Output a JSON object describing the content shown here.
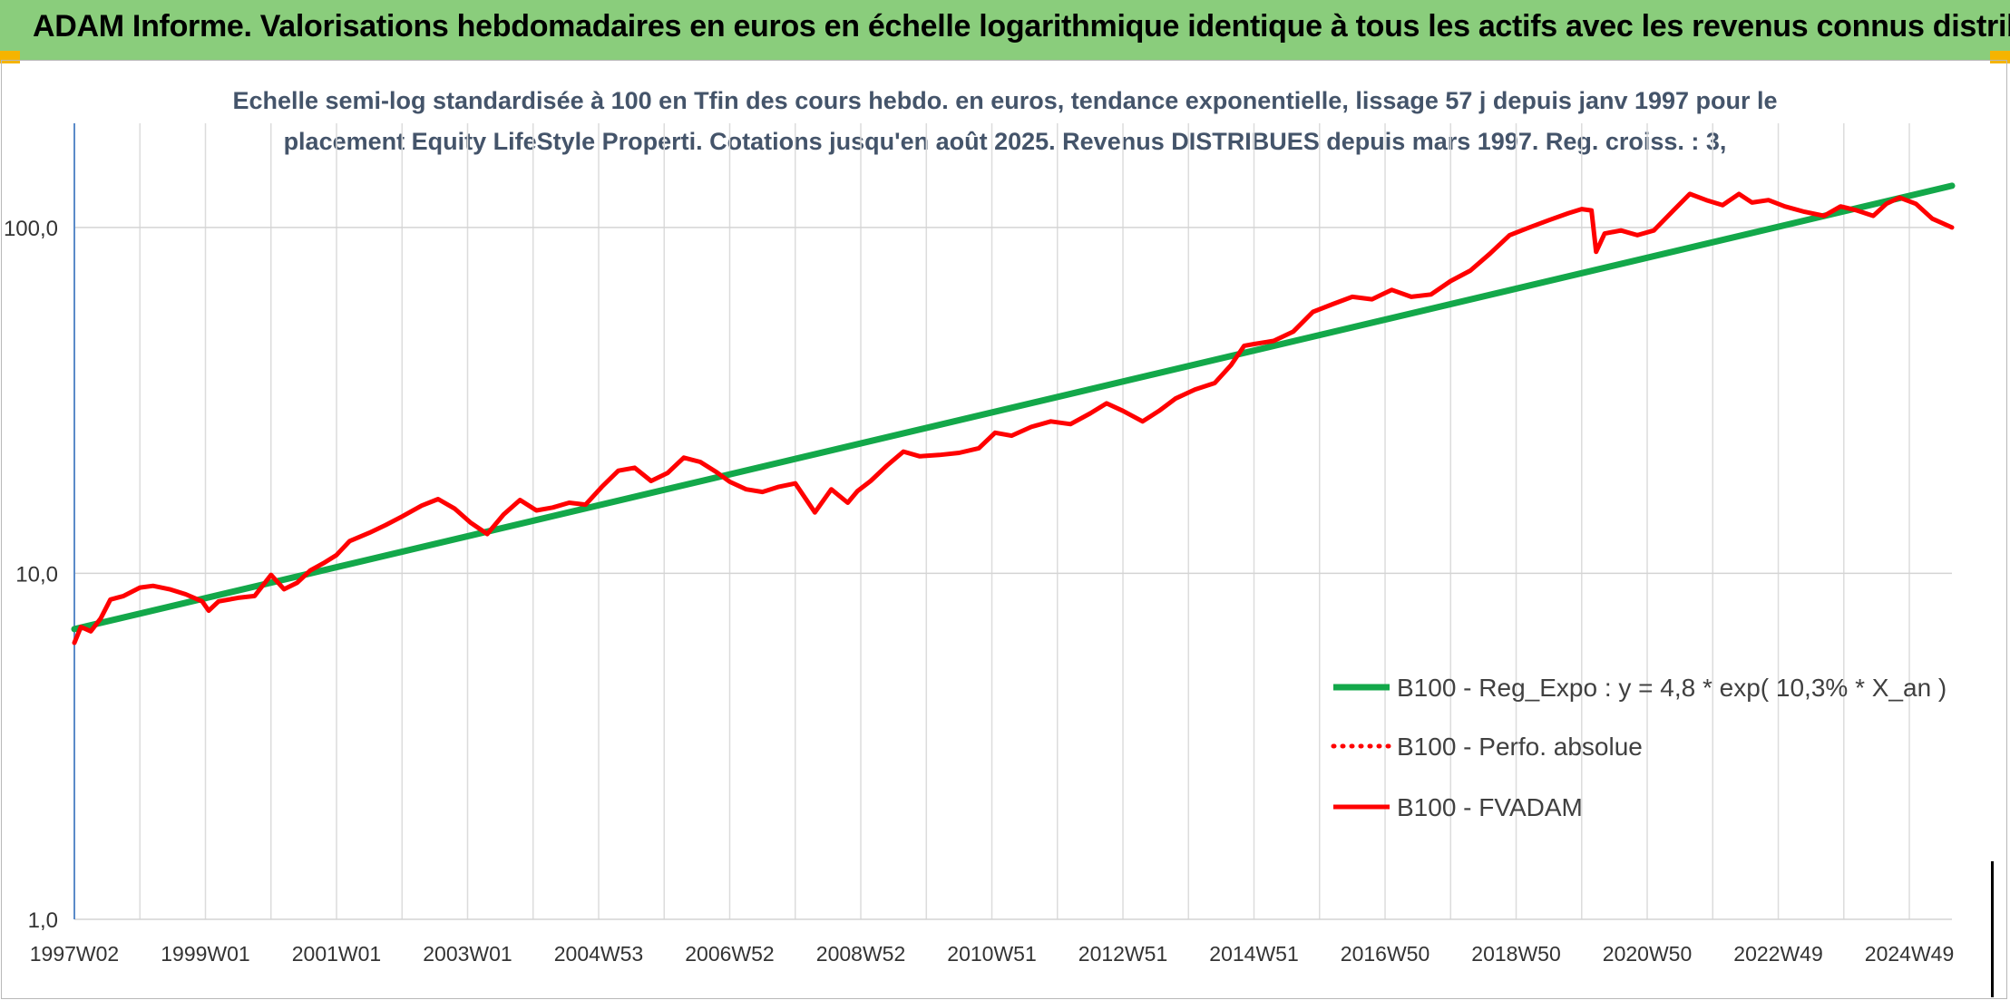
{
  "header": {
    "title": "ADAM Informe. Valorisations hebdomadaires en euros en échelle logarithmique identique à tous les actifs avec les revenus connus distribués"
  },
  "chart_data": {
    "type": "line",
    "title_line1": "Echelle semi-log standardisée à 100 en Tfin des cours hebdo. en euros, tendance exponentielle, lissage 57 j depuis janv 1997 pour le",
    "title_line2": "placement Equity LifeStyle Properti. Cotations jusqu'en août 2025. Revenus DISTRIBUES depuis mars 1997. Reg. croiss. : 3,",
    "y_scale": "log",
    "ylim": [
      1,
      200
    ],
    "y_ticks": [
      1,
      10,
      100
    ],
    "y_tick_labels": [
      "1,0",
      "10,0",
      "100,0"
    ],
    "x_range": [
      1997.0,
      2025.65
    ],
    "x_tick_labels": [
      "1997W02",
      "1999W01",
      "2001W01",
      "2003W01",
      "2004W53",
      "2006W52",
      "2008W52",
      "2010W51",
      "2012W51",
      "2014W51",
      "2016W50",
      "2018W50",
      "2020W50",
      "2022W49",
      "2024W49"
    ],
    "x_tick_years": [
      1997.0,
      1999.0,
      2001.0,
      2003.0,
      2005.0,
      2007.0,
      2009.0,
      2011.0,
      2013.0,
      2015.0,
      2017.0,
      2019.0,
      2021.0,
      2023.0,
      2025.0
    ],
    "grid": true,
    "legend_position": "bottom-right",
    "series": [
      {
        "name": "B100 - Reg_Expo : y = 4,8 * exp( 10,3% *  X_an )",
        "color": "#13a84a",
        "style": "solid",
        "x": [
          1997.0,
          2025.65
        ],
        "y": [
          6.9,
          132
        ]
      },
      {
        "name": "B100 - Perfo. absolue",
        "color": "#ff0000",
        "style": "dotted",
        "x": [],
        "y": []
      },
      {
        "name": "B100 - FVADAM",
        "color": "#ff0000",
        "style": "solid",
        "x": [
          1997.0,
          1997.1,
          1997.25,
          1997.4,
          1997.55,
          1997.75,
          1998.0,
          1998.2,
          1998.45,
          1998.7,
          1998.95,
          1999.05,
          1999.2,
          1999.5,
          1999.75,
          2000.0,
          2000.2,
          2000.4,
          2000.6,
          2000.8,
          2001.0,
          2001.2,
          2001.5,
          2001.75,
          2002.0,
          2002.3,
          2002.55,
          2002.8,
          2003.05,
          2003.3,
          2003.55,
          2003.8,
          2004.05,
          2004.3,
          2004.55,
          2004.8,
          2005.05,
          2005.3,
          2005.55,
          2005.8,
          2006.05,
          2006.3,
          2006.55,
          2006.8,
          2007.0,
          2007.25,
          2007.5,
          2007.75,
          2008.0,
          2008.3,
          2008.55,
          2008.8,
          2008.95,
          2009.15,
          2009.4,
          2009.65,
          2009.9,
          2010.2,
          2010.5,
          2010.8,
          2011.05,
          2011.3,
          2011.6,
          2011.9,
          2012.2,
          2012.5,
          2012.75,
          2013.0,
          2013.3,
          2013.55,
          2013.8,
          2014.1,
          2014.4,
          2014.65,
          2014.85,
          2015.0,
          2015.3,
          2015.6,
          2015.9,
          2016.2,
          2016.5,
          2016.8,
          2017.1,
          2017.4,
          2017.7,
          2018.0,
          2018.3,
          2018.6,
          2018.9,
          2019.2,
          2019.5,
          2019.8,
          2020.0,
          2020.15,
          2020.22,
          2020.35,
          2020.6,
          2020.85,
          2021.1,
          2021.4,
          2021.65,
          2021.9,
          2022.15,
          2022.4,
          2022.6,
          2022.85,
          2023.1,
          2023.4,
          2023.7,
          2023.95,
          2024.2,
          2024.45,
          2024.65,
          2024.85,
          2025.1,
          2025.35,
          2025.65
        ],
        "y": [
          6.3,
          7.0,
          6.8,
          7.4,
          8.4,
          8.6,
          9.1,
          9.2,
          9.0,
          8.7,
          8.3,
          7.8,
          8.3,
          8.5,
          8.6,
          9.9,
          9.0,
          9.4,
          10.2,
          10.7,
          11.3,
          12.4,
          13.1,
          13.8,
          14.6,
          15.7,
          16.4,
          15.4,
          14.0,
          13.0,
          14.8,
          16.3,
          15.2,
          15.5,
          16.0,
          15.8,
          17.8,
          19.8,
          20.2,
          18.5,
          19.5,
          21.6,
          21.0,
          19.6,
          18.4,
          17.5,
          17.2,
          17.8,
          18.2,
          15.0,
          17.5,
          16.0,
          17.3,
          18.5,
          20.5,
          22.5,
          21.8,
          22.0,
          22.3,
          23.0,
          25.5,
          25.0,
          26.5,
          27.5,
          27.0,
          29.0,
          31.0,
          29.5,
          27.5,
          29.5,
          32.0,
          34.0,
          35.5,
          40.0,
          45.5,
          46.0,
          47.0,
          50.0,
          57.0,
          60.0,
          63.0,
          62.0,
          66.0,
          63.0,
          64.0,
          70.0,
          75.0,
          84.0,
          95.0,
          100.0,
          105.0,
          110.0,
          113.0,
          112.0,
          85.0,
          96.0,
          98.0,
          95.0,
          98.0,
          112.0,
          125.0,
          120.0,
          116.0,
          125.0,
          118.0,
          120.0,
          115.0,
          111.0,
          108.0,
          115.0,
          112.0,
          108.0,
          117.0,
          122.0,
          117.0,
          106.0,
          100.0
        ]
      }
    ]
  }
}
